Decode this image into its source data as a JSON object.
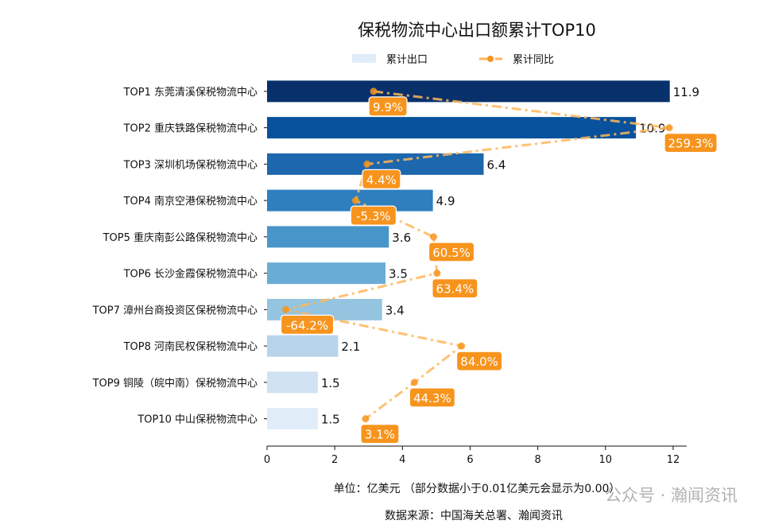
{
  "chart_data": {
    "type": "bar",
    "orientation": "horizontal",
    "title": "保税物流中心出口额累计TOP10",
    "categories": [
      "TOP1 东莞清溪保税物流中心",
      "TOP2 重庆铁路保税物流中心",
      "TOP3 深圳机场保税物流中心",
      "TOP4 南京空港保税物流中心",
      "TOP5 重庆南彭公路保税物流中心",
      "TOP6 长沙金霞保税物流中心",
      "TOP7 漳州台商投资区保税物流中心",
      "TOP8 河南民权保税物流中心",
      "TOP9 铜陵（皖中南）保税物流中心",
      "TOP10 中山保税物流中心"
    ],
    "series": [
      {
        "name": "累计出口",
        "type": "bar",
        "values": [
          11.9,
          10.9,
          6.4,
          4.9,
          3.6,
          3.5,
          3.4,
          2.1,
          1.5,
          1.5
        ],
        "labels": [
          "11.9",
          "10.9",
          "6.4",
          "4.9",
          "3.6",
          "3.5",
          "3.4",
          "2.1",
          "1.5",
          "1.5"
        ]
      },
      {
        "name": "累计同比",
        "type": "line",
        "unit": "%",
        "values": [
          9.9,
          259.3,
          4.4,
          -5.3,
          60.5,
          63.4,
          -64.2,
          84.0,
          44.3,
          3.1
        ],
        "labels": [
          "9.9%",
          "259.3%",
          "4.4%",
          "-5.3%",
          "60.5%",
          "63.4%",
          "-64.2%",
          "84.0%",
          "44.3%",
          "3.1%"
        ]
      }
    ],
    "xlim": [
      0,
      12.4
    ],
    "x2lim": [
      -80,
      274
    ],
    "xticks": [
      "0",
      "2",
      "4",
      "6",
      "8",
      "10",
      "12"
    ],
    "xlabel": "单位：亿美元  （部分数据小于0.01亿美元会显示为0.00）",
    "source": "数据来源：中国海关总署、瀚闻资讯",
    "legend": {
      "placement": "top-center",
      "items": [
        "累计出口",
        "累计同比"
      ]
    },
    "grid": false,
    "colors": {
      "bars": [
        "#08306b",
        "#08519c",
        "#1c67ad",
        "#2f7fbf",
        "#4896c9",
        "#69acd5",
        "#94c4df",
        "#b7d4ea",
        "#d0e1f2",
        "#e0ecf8"
      ],
      "line": "#ffb65a",
      "label_bg": "#f7941d"
    }
  },
  "watermark": "公众号 · 瀚闻资讯"
}
